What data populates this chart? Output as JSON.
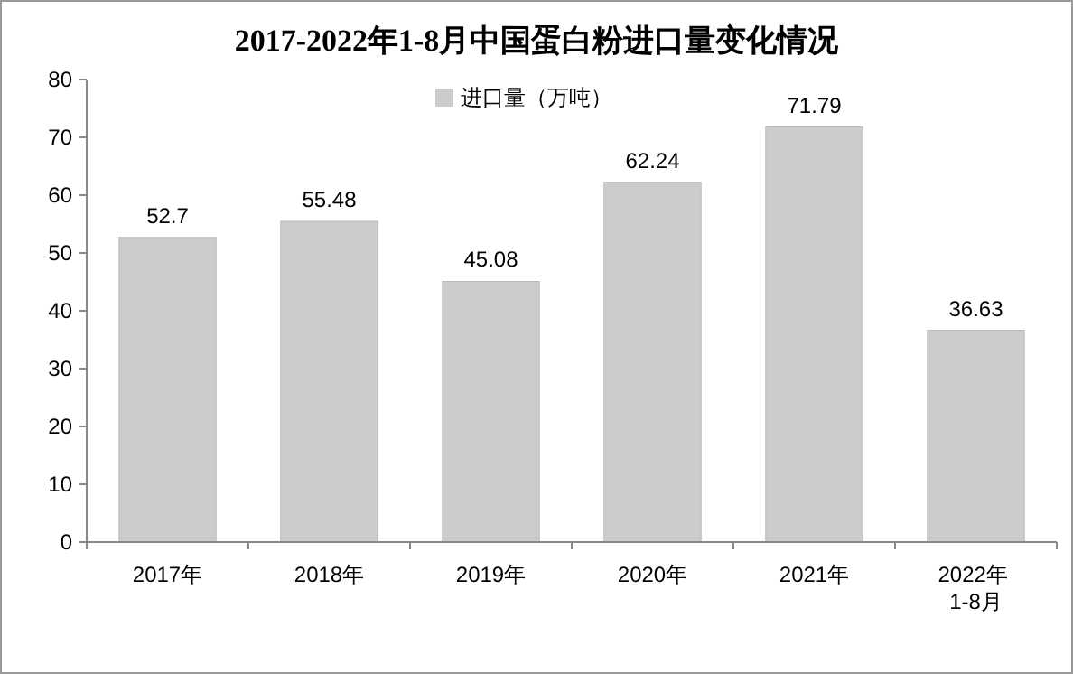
{
  "chart_data": {
    "type": "bar",
    "title": "2017-2022年1-8月中国蛋白粉进口量变化情况",
    "categories": [
      "2017年",
      "2018年",
      "2019年",
      "2020年",
      "2021年",
      "2022年 1-8月"
    ],
    "series": [
      {
        "name": "进口量（万吨）",
        "color": "#cccccc",
        "values": [
          52.7,
          55.48,
          45.08,
          62.24,
          71.79,
          36.63
        ]
      }
    ],
    "ylim": [
      0,
      80
    ],
    "yticks": [
      0,
      10,
      20,
      30,
      40,
      50,
      60,
      70,
      80
    ],
    "data_labels": true,
    "legend": "top",
    "grid": false
  }
}
